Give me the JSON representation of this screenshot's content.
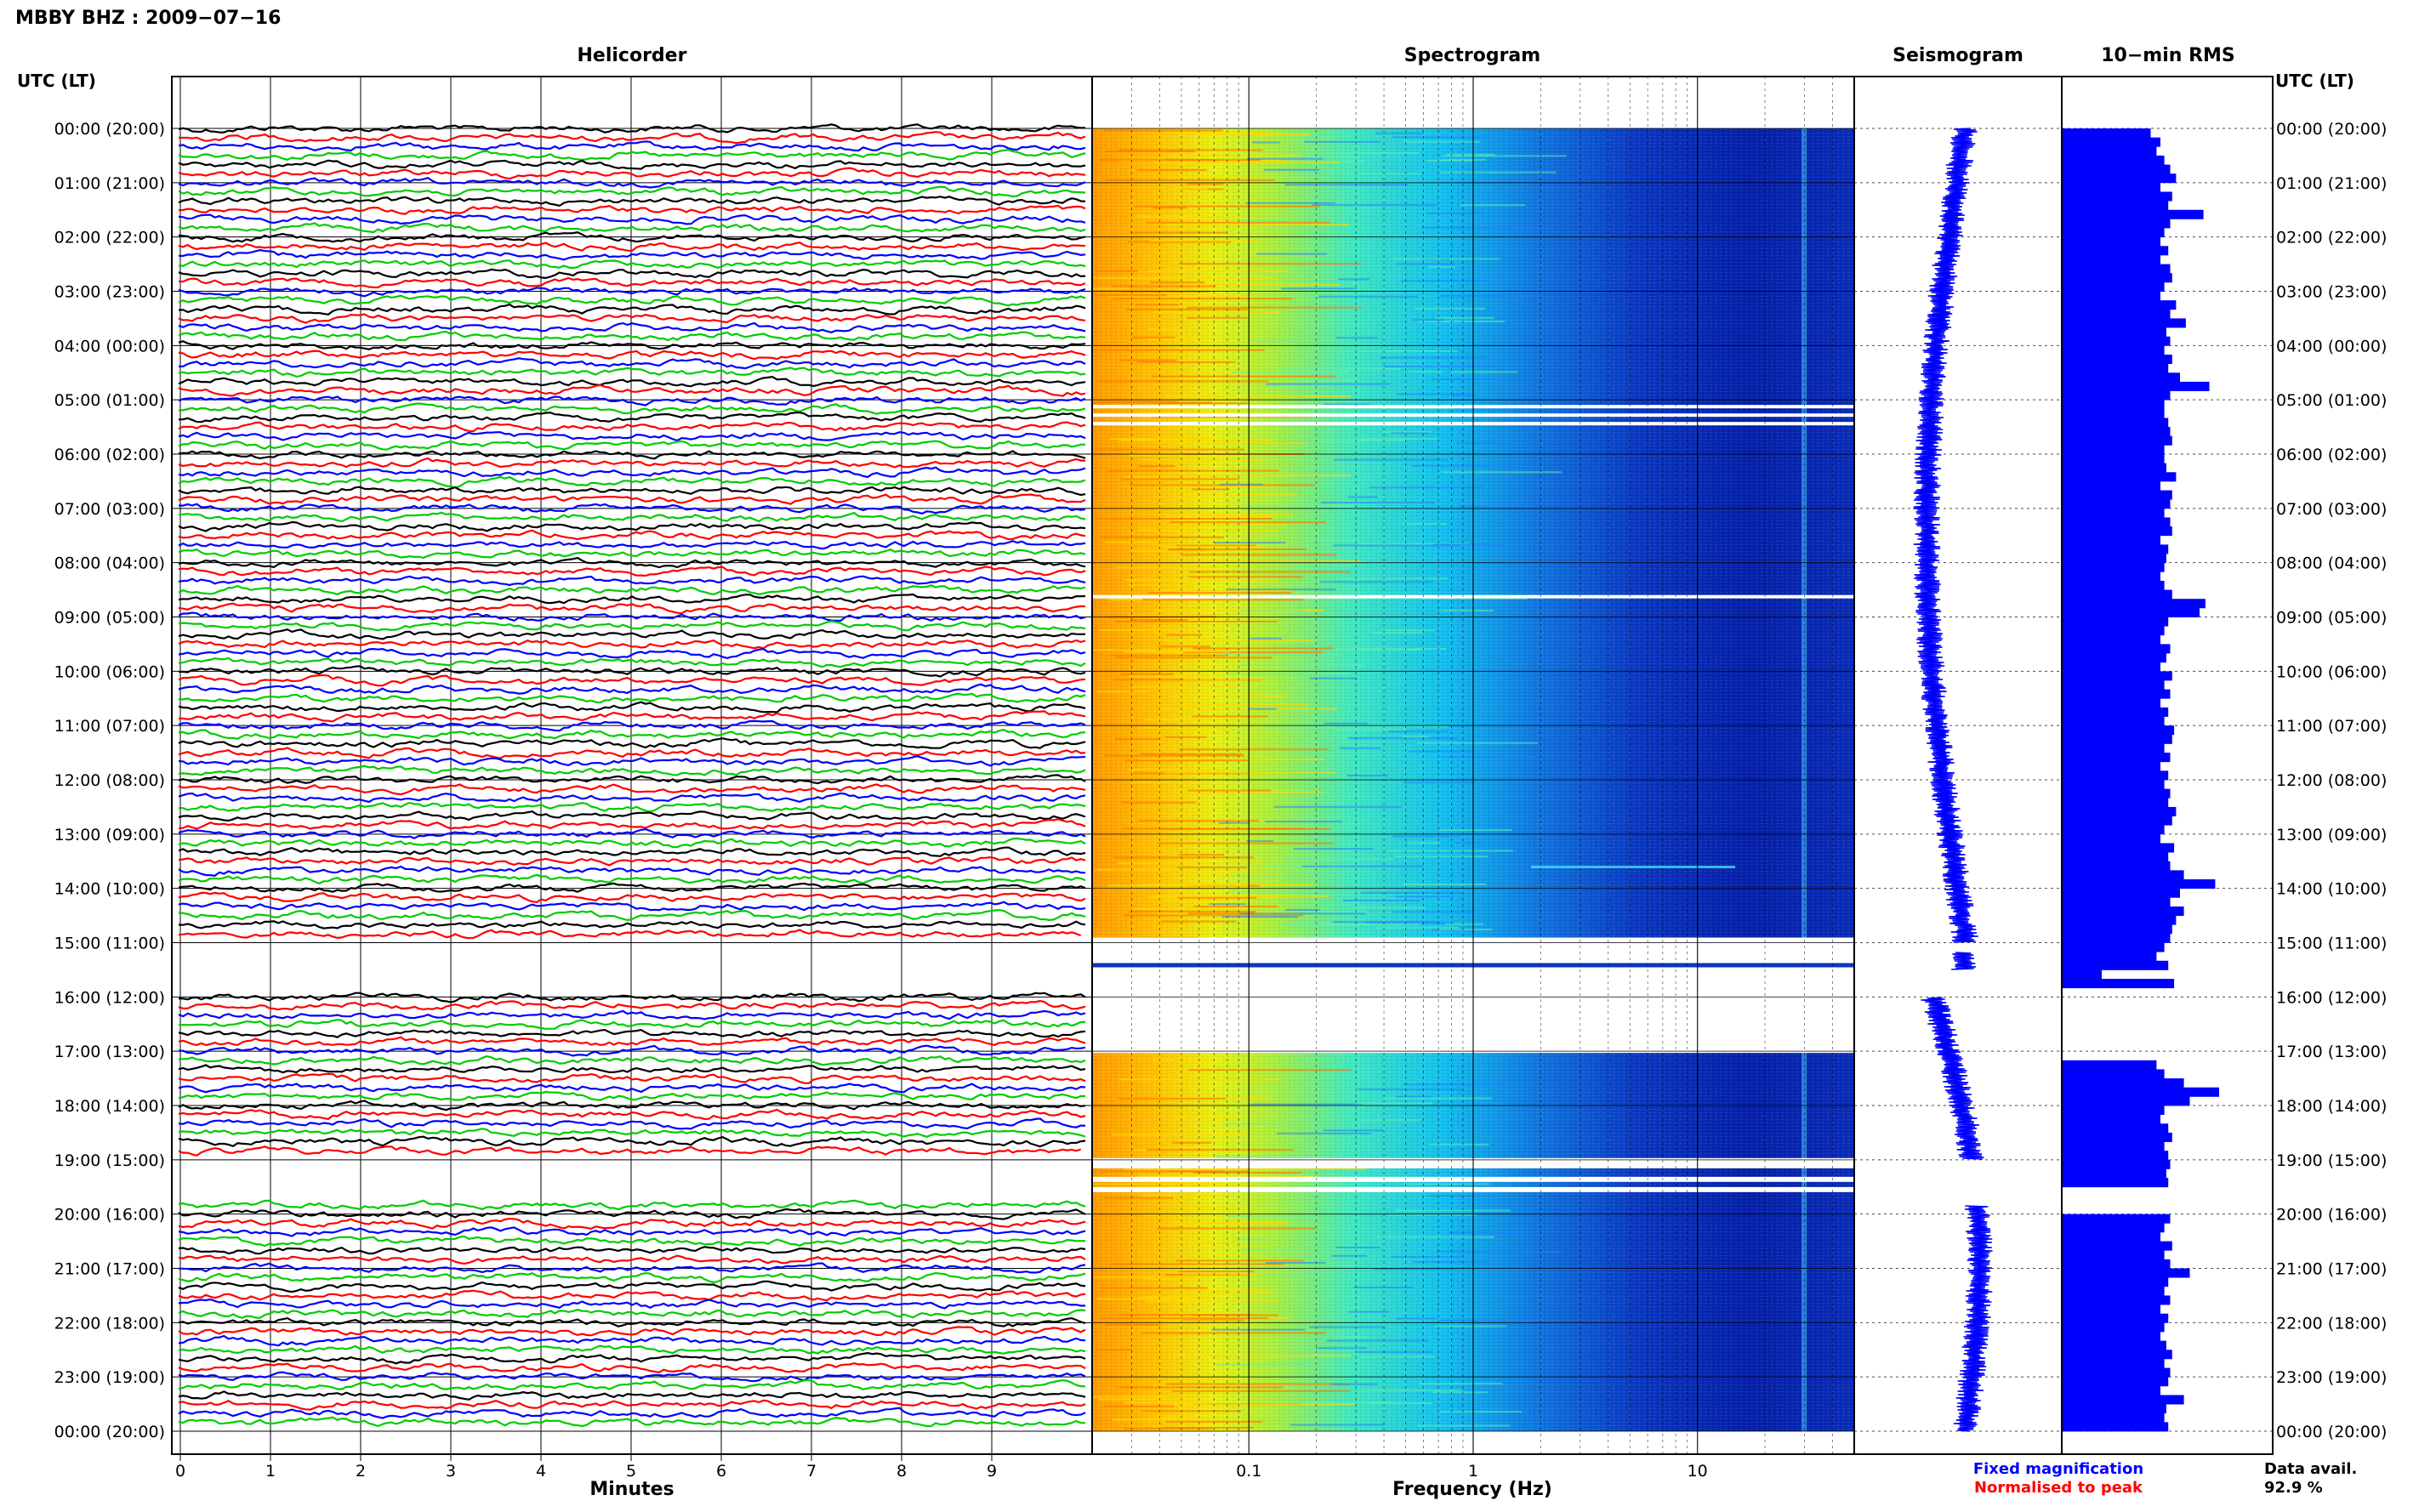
{
  "header": {
    "title": "MBBY BHZ : 2009−07−16",
    "utc_label_left": "UTC (LT)",
    "utc_label_right": "UTC (LT)"
  },
  "panels": {
    "helicorder": "Helicorder",
    "spectrogram": "Spectrogram",
    "seismogram": "Seismogram",
    "rms": "10−min RMS"
  },
  "axes": {
    "minutes_label": "Minutes",
    "minutes_ticks": [
      "0",
      "1",
      "2",
      "3",
      "4",
      "5",
      "6",
      "7",
      "8",
      "9"
    ],
    "frequency_label": "Frequency (Hz)",
    "frequency_ticks": [
      "0.1",
      "1",
      "10"
    ]
  },
  "hour_labels": [
    "00:00 (20:00)",
    "01:00 (21:00)",
    "02:00 (22:00)",
    "03:00 (23:00)",
    "04:00 (00:00)",
    "05:00 (01:00)",
    "06:00 (02:00)",
    "07:00 (03:00)",
    "08:00 (04:00)",
    "09:00 (05:00)",
    "10:00 (06:00)",
    "11:00 (07:00)",
    "12:00 (08:00)",
    "13:00 (09:00)",
    "14:00 (10:00)",
    "15:00 (11:00)",
    "16:00 (12:00)",
    "17:00 (13:00)",
    "18:00 (14:00)",
    "19:00 (15:00)",
    "20:00 (16:00)",
    "21:00 (17:00)",
    "22:00 (18:00)",
    "23:00 (19:00)",
    "00:00 (20:00)"
  ],
  "legend": {
    "fixed": "Fixed magnification",
    "normalised": "Normalised to peak",
    "fixed_color": "#0000ff",
    "normalised_color": "#ff0000"
  },
  "data_avail": {
    "label": "Data avail.",
    "value": "92.9 %"
  },
  "colors": {
    "helicorder_traces": [
      "#000000",
      "#ff0000",
      "#0000ff",
      "#00cc00"
    ],
    "seismogram": "#0000ff",
    "rms_bars": "#0000ff"
  },
  "chart_data": {
    "type": "bar",
    "xlabel": "",
    "ylabel": "",
    "categories_note": "",
    "gaps": [
      {
        "start_utc": "15:00",
        "end_utc": "16:00"
      },
      {
        "start_utc": "19:00",
        "end_utc": "19:50"
      }
    ],
    "rms_relative": [
      0.45,
      0.5,
      0.48,
      0.52,
      0.55,
      0.58,
      0.5,
      0.56,
      0.54,
      0.72,
      0.55,
      0.52,
      0.5,
      0.54,
      0.5,
      0.55,
      0.56,
      0.52,
      0.5,
      0.58,
      0.55,
      0.63,
      0.53,
      0.55,
      0.52,
      0.56,
      0.54,
      0.6,
      0.75,
      0.55,
      0.52,
      0.52,
      0.54,
      0.55,
      0.56,
      0.52,
      0.52,
      0.53,
      0.58,
      0.5,
      0.56,
      0.55,
      0.52,
      0.55,
      0.56,
      0.5,
      0.54,
      0.53,
      0.52,
      0.5,
      0.52,
      0.56,
      0.73,
      0.7,
      0.54,
      0.52,
      0.5,
      0.55,
      0.53,
      0.5,
      0.56,
      0.52,
      0.55,
      0.5,
      0.54,
      0.52,
      0.57,
      0.56,
      0.52,
      0.55,
      0.5,
      0.54,
      0.52,
      0.55,
      0.54,
      0.58,
      0.56,
      0.52,
      0.5,
      0.57,
      0.54,
      0.55,
      0.62,
      0.78,
      0.6,
      0.55,
      0.62,
      0.58,
      0.56,
      0.55,
      0.52,
      0.48,
      0.54,
      0.2,
      0.57,
      null,
      null,
      null,
      null,
      null,
      null,
      null,
      null,
      0.48,
      0.52,
      0.62,
      0.8,
      0.65,
      0.52,
      0.5,
      0.54,
      0.56,
      0.52,
      0.54,
      0.55,
      0.53,
      0.54,
      null,
      null,
      null,
      0.55,
      0.52,
      0.5,
      0.56,
      0.52,
      0.55,
      0.65,
      0.54,
      0.52,
      0.55,
      0.5,
      0.54,
      0.52,
      0.5,
      0.53,
      0.56,
      0.52,
      0.55,
      0.54,
      0.5,
      0.62,
      0.53,
      0.52,
      0.54
    ]
  }
}
